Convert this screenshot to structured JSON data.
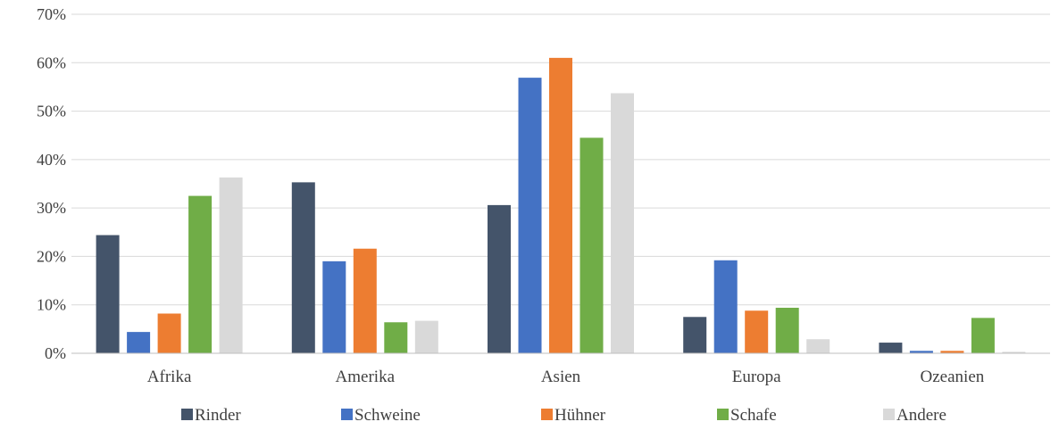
{
  "chart_data": {
    "type": "bar",
    "categories": [
      "Afrika",
      "Amerika",
      "Asien",
      "Europa",
      "Ozeanien"
    ],
    "series": [
      {
        "name": "Rinder",
        "color": "#44546a",
        "values": [
          24.4,
          35.3,
          30.6,
          7.5,
          2.2
        ]
      },
      {
        "name": "Schweine",
        "color": "#4472c4",
        "values": [
          4.4,
          19.0,
          56.9,
          19.2,
          0.5
        ]
      },
      {
        "name": "Hühner",
        "color": "#ed7d31",
        "values": [
          8.2,
          21.6,
          61.0,
          8.8,
          0.5
        ]
      },
      {
        "name": "Schafe",
        "color": "#70ad47",
        "values": [
          32.5,
          6.4,
          44.5,
          9.4,
          7.3
        ]
      },
      {
        "name": "Andere",
        "color": "#d9d9d9",
        "values": [
          36.3,
          6.7,
          53.7,
          2.9,
          0.3
        ]
      }
    ],
    "yticks": [
      "0%",
      "10%",
      "20%",
      "30%",
      "40%",
      "50%",
      "60%",
      "70%"
    ],
    "ylim": [
      0,
      70
    ],
    "grid": true,
    "legend_position": "bottom"
  }
}
